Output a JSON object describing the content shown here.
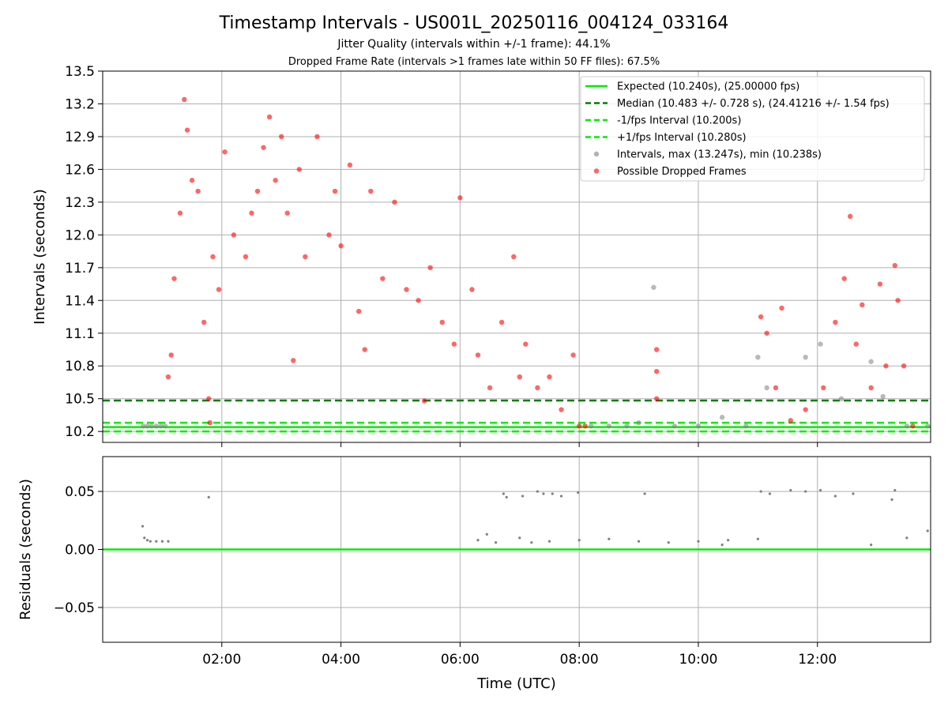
{
  "chart_data": [
    {
      "type": "scatter",
      "title": "Timestamp Intervals - US001L_20250116_004124_033164",
      "subtitle_1": "Jitter Quality (intervals within +/-1 frame): 44.1%",
      "subtitle_2": "Dropped Frame Rate (intervals >1 frames late within 50 FF files): 67.5%",
      "ylabel": "Intervals (seconds)",
      "xlim_hours": [
        0.0,
        13.9
      ],
      "ylim": [
        10.1,
        13.5
      ],
      "yticks": [
        "10.2",
        "10.5",
        "10.8",
        "11.1",
        "11.4",
        "11.7",
        "12.0",
        "12.3",
        "12.6",
        "12.9",
        "13.2",
        "13.5"
      ],
      "grid": true,
      "legend_position": "top-right",
      "reference_lines": [
        {
          "name": "Expected (10.240s), (25.00000 fps)",
          "y": 10.24,
          "style": "solid",
          "color": "#00ee00"
        },
        {
          "name": "Median (10.483 +/- 0.728 s), (24.41216 +/- 1.54 fps)",
          "y": 10.483,
          "style": "dashed",
          "color": "#007f00"
        },
        {
          "name": "-1/fps Interval (10.200s)",
          "y": 10.2,
          "style": "dashed",
          "color": "#00ee00"
        },
        {
          "name": "+1/fps Interval (10.280s)",
          "y": 10.28,
          "style": "dashed",
          "color": "#00ee00"
        }
      ],
      "scatter_series": [
        {
          "name": "Intervals, max (13.247s), min (10.238s)",
          "color": "#808080"
        },
        {
          "name": "Possible Dropped Frames",
          "color": "#ff0000"
        }
      ],
      "intervals_sample": [
        [
          0.68,
          10.25
        ],
        [
          0.75,
          10.25
        ],
        [
          0.82,
          10.25
        ],
        [
          0.9,
          10.25
        ],
        [
          0.98,
          10.25
        ],
        [
          1.05,
          10.25
        ],
        [
          8.2,
          10.25
        ],
        [
          8.5,
          10.25
        ],
        [
          8.8,
          10.25
        ],
        [
          9.0,
          10.28
        ],
        [
          9.25,
          11.52
        ],
        [
          9.6,
          10.25
        ],
        [
          10.0,
          10.25
        ],
        [
          10.4,
          10.33
        ],
        [
          10.8,
          10.25
        ],
        [
          11.0,
          10.88
        ],
        [
          11.15,
          10.6
        ],
        [
          11.8,
          10.88
        ],
        [
          12.05,
          11.0
        ],
        [
          12.4,
          10.5
        ],
        [
          12.9,
          10.84
        ],
        [
          13.1,
          10.52
        ],
        [
          13.5,
          10.25
        ],
        [
          13.85,
          10.25
        ]
      ],
      "dropped_frames_sample": [
        [
          1.1,
          10.7
        ],
        [
          1.15,
          10.9
        ],
        [
          1.2,
          11.6
        ],
        [
          1.3,
          12.2
        ],
        [
          1.37,
          13.24
        ],
        [
          1.42,
          12.96
        ],
        [
          1.5,
          12.5
        ],
        [
          1.6,
          12.4
        ],
        [
          1.7,
          11.2
        ],
        [
          1.78,
          10.5
        ],
        [
          1.8,
          10.28
        ],
        [
          1.85,
          11.8
        ],
        [
          1.95,
          11.5
        ],
        [
          2.05,
          12.76
        ],
        [
          2.2,
          12.0
        ],
        [
          2.4,
          11.8
        ],
        [
          2.5,
          12.2
        ],
        [
          2.6,
          12.4
        ],
        [
          2.7,
          12.8
        ],
        [
          2.8,
          13.08
        ],
        [
          2.9,
          12.5
        ],
        [
          3.0,
          12.9
        ],
        [
          3.1,
          12.2
        ],
        [
          3.2,
          10.85
        ],
        [
          3.3,
          12.6
        ],
        [
          3.4,
          11.8
        ],
        [
          3.6,
          12.9
        ],
        [
          3.8,
          12.0
        ],
        [
          3.9,
          12.4
        ],
        [
          4.0,
          11.9
        ],
        [
          4.15,
          12.64
        ],
        [
          4.3,
          11.3
        ],
        [
          4.4,
          10.95
        ],
        [
          4.5,
          12.4
        ],
        [
          4.7,
          11.6
        ],
        [
          4.9,
          12.3
        ],
        [
          5.1,
          11.5
        ],
        [
          5.3,
          11.4
        ],
        [
          5.4,
          10.48
        ],
        [
          5.5,
          11.7
        ],
        [
          5.7,
          11.2
        ],
        [
          5.9,
          11.0
        ],
        [
          6.0,
          12.34
        ],
        [
          6.2,
          11.5
        ],
        [
          6.3,
          10.9
        ],
        [
          6.5,
          10.6
        ],
        [
          6.7,
          11.2
        ],
        [
          6.9,
          11.8
        ],
        [
          7.0,
          10.7
        ],
        [
          7.1,
          11.0
        ],
        [
          7.3,
          10.6
        ],
        [
          7.5,
          10.7
        ],
        [
          7.7,
          10.4
        ],
        [
          7.9,
          10.9
        ],
        [
          8.0,
          10.25
        ],
        [
          8.1,
          10.25
        ],
        [
          9.3,
          10.95
        ],
        [
          9.3,
          10.75
        ],
        [
          9.3,
          10.5
        ],
        [
          11.05,
          11.25
        ],
        [
          11.15,
          11.1
        ],
        [
          11.3,
          10.6
        ],
        [
          11.4,
          11.33
        ],
        [
          11.55,
          10.3
        ],
        [
          11.8,
          10.4
        ],
        [
          12.1,
          10.6
        ],
        [
          12.3,
          11.2
        ],
        [
          12.45,
          11.6
        ],
        [
          12.55,
          12.17
        ],
        [
          12.65,
          11.0
        ],
        [
          12.75,
          11.36
        ],
        [
          12.9,
          10.6
        ],
        [
          13.05,
          11.55
        ],
        [
          13.15,
          10.8
        ],
        [
          13.3,
          11.72
        ],
        [
          13.35,
          11.4
        ],
        [
          13.45,
          10.8
        ],
        [
          13.6,
          10.25
        ]
      ]
    },
    {
      "type": "scatter",
      "xlabel": "Time (UTC)",
      "ylabel": "Residuals (seconds)",
      "xlim_hours": [
        0.0,
        13.9
      ],
      "ylim": [
        -0.08,
        0.08
      ],
      "xticks": [
        {
          "value": 2,
          "label": "02:00"
        },
        {
          "value": 4,
          "label": "04:00"
        },
        {
          "value": 6,
          "label": "06:00"
        },
        {
          "value": 8,
          "label": "08:00"
        },
        {
          "value": 10,
          "label": "10:00"
        },
        {
          "value": 12,
          "label": "12:00"
        }
      ],
      "yticks": [
        {
          "value": 0.05,
          "label": "0.05"
        },
        {
          "value": 0.0,
          "label": "0.00"
        },
        {
          "value": -0.05,
          "label": "−0.05"
        }
      ],
      "grid": true,
      "zero_line_color": "#00ee00",
      "residuals_color": "#808080",
      "residuals_sample": [
        [
          0.67,
          0.02
        ],
        [
          0.7,
          0.01
        ],
        [
          0.75,
          0.008
        ],
        [
          0.8,
          0.007
        ],
        [
          0.9,
          0.007
        ],
        [
          1.0,
          0.007
        ],
        [
          1.1,
          0.007
        ],
        [
          1.78,
          0.045
        ],
        [
          6.3,
          0.008
        ],
        [
          6.45,
          0.013
        ],
        [
          6.6,
          0.006
        ],
        [
          6.73,
          0.048
        ],
        [
          6.78,
          0.045
        ],
        [
          7.05,
          0.046
        ],
        [
          7.3,
          0.05
        ],
        [
          7.4,
          0.048
        ],
        [
          7.55,
          0.048
        ],
        [
          7.7,
          0.046
        ],
        [
          7.98,
          0.049
        ],
        [
          7.0,
          0.01
        ],
        [
          7.2,
          0.006
        ],
        [
          7.5,
          0.007
        ],
        [
          8.0,
          0.008
        ],
        [
          8.5,
          0.009
        ],
        [
          9.0,
          0.007
        ],
        [
          9.1,
          0.048
        ],
        [
          9.5,
          0.006
        ],
        [
          10.0,
          0.007
        ],
        [
          10.4,
          0.004
        ],
        [
          10.5,
          0.008
        ],
        [
          11.0,
          0.009
        ],
        [
          11.05,
          0.05
        ],
        [
          11.2,
          0.048
        ],
        [
          11.55,
          0.051
        ],
        [
          11.8,
          0.05
        ],
        [
          12.05,
          0.051
        ],
        [
          12.3,
          0.046
        ],
        [
          12.6,
          0.048
        ],
        [
          12.9,
          0.004
        ],
        [
          13.3,
          0.051
        ],
        [
          13.25,
          0.043
        ],
        [
          13.5,
          0.01
        ],
        [
          13.85,
          0.016
        ]
      ]
    }
  ]
}
